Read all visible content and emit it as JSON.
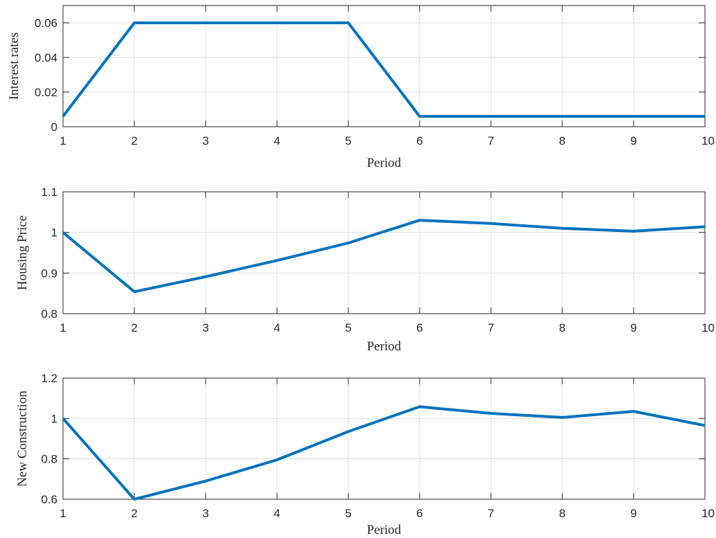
{
  "colors": {
    "series": "#0072BD",
    "grid": "#dfdfdf",
    "axes": "#262626"
  },
  "chart_data": [
    {
      "type": "line",
      "title": "",
      "xlabel": "Period",
      "ylabel": "Interest rates",
      "x": [
        1,
        2,
        3,
        4,
        5,
        6,
        7,
        8,
        9,
        10
      ],
      "xlim": [
        1,
        10
      ],
      "ylim": [
        0,
        0.07
      ],
      "xticks": [
        1,
        2,
        3,
        4,
        5,
        6,
        7,
        8,
        9,
        10
      ],
      "yticks": [
        0,
        0.02,
        0.04,
        0.06
      ],
      "xtick_labels": [
        "1",
        "2",
        "3",
        "4",
        "5",
        "6",
        "7",
        "8",
        "9",
        "10"
      ],
      "ytick_labels": [
        "0",
        "0.02",
        "0.04",
        "0.06"
      ],
      "grid": true,
      "series": [
        {
          "values": [
            0.006,
            0.06,
            0.06,
            0.06,
            0.06,
            0.006,
            0.006,
            0.006,
            0.006,
            0.006
          ]
        }
      ]
    },
    {
      "type": "line",
      "title": "",
      "xlabel": "Period",
      "ylabel": "Housing Price",
      "x": [
        1,
        2,
        3,
        4,
        5,
        6,
        7,
        8,
        9,
        10
      ],
      "xlim": [
        1,
        10
      ],
      "ylim": [
        0.8,
        1.1
      ],
      "xticks": [
        1,
        2,
        3,
        4,
        5,
        6,
        7,
        8,
        9,
        10
      ],
      "yticks": [
        0.8,
        0.9,
        1.0,
        1.1
      ],
      "xtick_labels": [
        "1",
        "2",
        "3",
        "4",
        "5",
        "6",
        "7",
        "8",
        "9",
        "10"
      ],
      "ytick_labels": [
        "0.8",
        "0.9",
        "1",
        "1.1"
      ],
      "grid": true,
      "series": [
        {
          "values": [
            1.0,
            0.854,
            0.891,
            0.931,
            0.974,
            1.03,
            1.022,
            1.01,
            1.003,
            1.014
          ]
        }
      ]
    },
    {
      "type": "line",
      "title": "",
      "xlabel": "Period",
      "ylabel": "New Construction",
      "x": [
        1,
        2,
        3,
        4,
        5,
        6,
        7,
        8,
        9,
        10
      ],
      "xlim": [
        1,
        10
      ],
      "ylim": [
        0.6,
        1.2
      ],
      "xticks": [
        1,
        2,
        3,
        4,
        5,
        6,
        7,
        8,
        9,
        10
      ],
      "yticks": [
        0.6,
        0.8,
        1.0,
        1.2
      ],
      "xtick_labels": [
        "1",
        "2",
        "3",
        "4",
        "5",
        "6",
        "7",
        "8",
        "9",
        "10"
      ],
      "ytick_labels": [
        "0.6",
        "0.8",
        "1",
        "1.2"
      ],
      "grid": true,
      "series": [
        {
          "values": [
            1.0,
            0.6,
            0.69,
            0.795,
            0.935,
            1.058,
            1.025,
            1.005,
            1.035,
            0.965
          ]
        }
      ]
    }
  ]
}
